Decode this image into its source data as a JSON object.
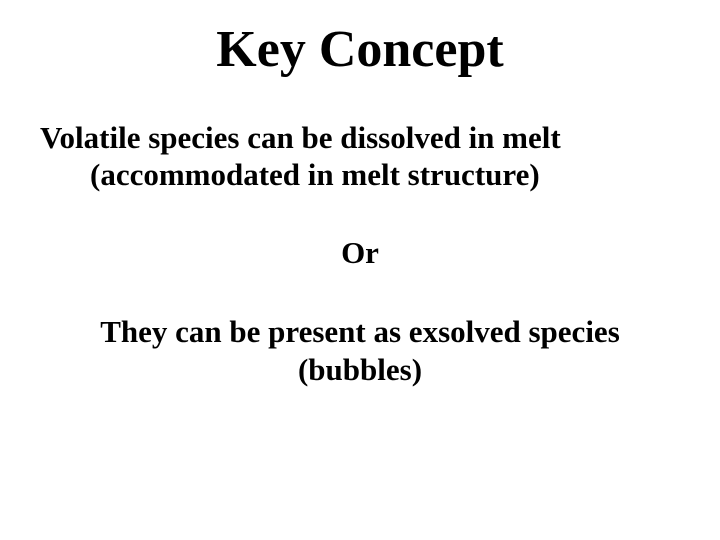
{
  "slide": {
    "title": "Key Concept",
    "paragraph1_line1": "Volatile species can be dissolved in melt",
    "paragraph1_line2": "(accommodated in melt structure)",
    "or_text": "Or",
    "paragraph2_line1": "They can be present as exsolved species",
    "paragraph2_line2": "(bubbles)",
    "title_fontsize": 52,
    "body_fontsize": 31,
    "font_family": "Times New Roman",
    "text_color": "#000000",
    "background_color": "#ffffff"
  }
}
